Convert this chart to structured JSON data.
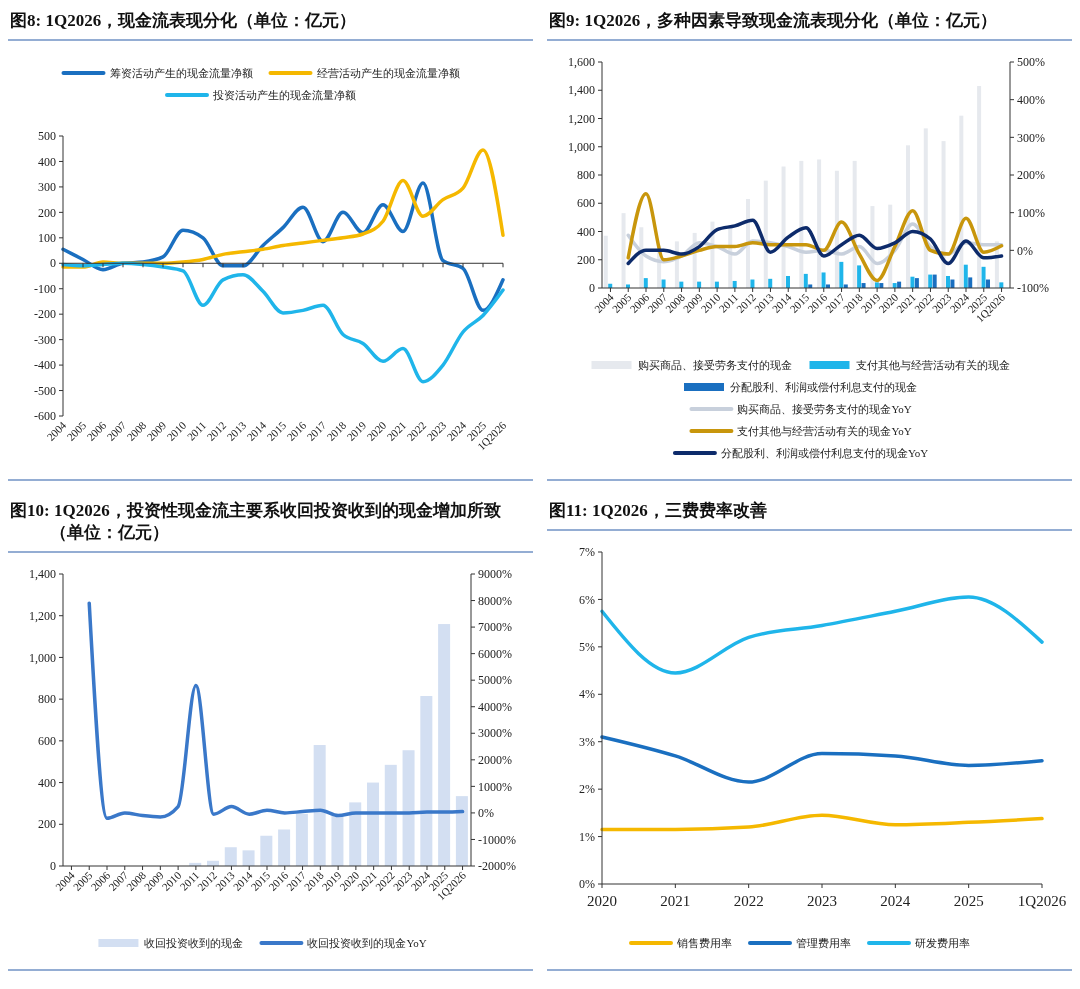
{
  "chart_data": [
    {
      "type": "line",
      "title": "图8: 1Q2026，现金流表现分化（单位：亿元）",
      "legend": "top",
      "categories": [
        "2004",
        "2005",
        "2006",
        "2007",
        "2008",
        "2009",
        "2010",
        "2011",
        "2012",
        "2013",
        "2014",
        "2015",
        "2016",
        "2017",
        "2018",
        "2019",
        "2020",
        "2021",
        "2022",
        "2023",
        "2024",
        "2025",
        "1Q2026"
      ],
      "ylim": [
        -600,
        500
      ],
      "yticks": [
        -600,
        -500,
        -400,
        -300,
        -200,
        -100,
        0,
        100,
        200,
        300,
        400,
        500
      ],
      "series": [
        {
          "name": "筹资活动产生的现金流量净额",
          "color": "#1a6fc0",
          "values": [
            55,
            15,
            -25,
            0,
            5,
            25,
            130,
            100,
            -10,
            -10,
            70,
            140,
            220,
            85,
            200,
            120,
            230,
            125,
            315,
            10,
            -20,
            -185,
            -65
          ]
        },
        {
          "name": "经营活动产生的现金流量净额",
          "color": "#f5b800",
          "values": [
            -15,
            -15,
            5,
            0,
            0,
            0,
            5,
            15,
            35,
            45,
            55,
            70,
            80,
            90,
            100,
            115,
            165,
            325,
            185,
            250,
            295,
            445,
            110
          ]
        },
        {
          "name": "投资活动产生的现金流量净额",
          "color": "#1fb5ea",
          "values": [
            -5,
            -10,
            -5,
            0,
            -5,
            -15,
            -30,
            -165,
            -65,
            -45,
            -110,
            -195,
            -185,
            -165,
            -280,
            -315,
            -385,
            -335,
            -465,
            -400,
            -270,
            -205,
            -105
          ]
        }
      ]
    },
    {
      "type": "bar",
      "title": "图9: 1Q2026，多种因素导致现金流表现分化（单位：亿元）",
      "legend": "bottom",
      "categories": [
        "2004",
        "2005",
        "2006",
        "2007",
        "2008",
        "2009",
        "2010",
        "2011",
        "2012",
        "2013",
        "2014",
        "2015",
        "2016",
        "2017",
        "2018",
        "2019",
        "2020",
        "2021",
        "2022",
        "2023",
        "2024",
        "2025",
        "1Q2026"
      ],
      "ylim": [
        0,
        1600
      ],
      "yticks": [
        0,
        200,
        400,
        600,
        800,
        {
          "value": 1000,
          "label": "1,000"
        },
        {
          "value": 1200,
          "label": "1,200"
        },
        {
          "value": 1400,
          "label": "1,400"
        },
        {
          "value": 1600,
          "label": "1,600"
        }
      ],
      "y2lim": [
        -100,
        500
      ],
      "y2ticks": [
        {
          "value": -100,
          "label": "-100%"
        },
        {
          "value": 0,
          "label": "0%"
        },
        {
          "value": 100,
          "label": "100%"
        },
        {
          "value": 200,
          "label": "200%"
        },
        {
          "value": 300,
          "label": "300%"
        },
        {
          "value": 400,
          "label": "400%"
        },
        {
          "value": 500,
          "label": "500%"
        }
      ],
      "series": [
        {
          "name": "购买商品、接受劳务支付的现金",
          "color": "#e6e9ee",
          "values": [
            370,
            530,
            430,
            300,
            330,
            390,
            470,
            430,
            630,
            760,
            860,
            900,
            910,
            830,
            900,
            580,
            590,
            1010,
            1130,
            1040,
            1220,
            1430,
            330
          ]
        },
        {
          "name": "支付其他与经营活动有关的现金",
          "color": "#1fb5ea",
          "values": [
            30,
            25,
            70,
            60,
            45,
            45,
            45,
            50,
            60,
            65,
            85,
            100,
            110,
            185,
            160,
            40,
            35,
            80,
            95,
            85,
            165,
            150,
            40
          ]
        },
        {
          "name": "分配股利、利润或偿付利息支付的现金",
          "color": "#1a6fc0",
          "values": [
            null,
            null,
            null,
            null,
            null,
            null,
            null,
            null,
            null,
            null,
            null,
            25,
            25,
            25,
            35,
            35,
            45,
            70,
            95,
            60,
            75,
            60,
            null
          ]
        },
        {
          "name": "购买商品、接受劳务支付的现金YoY",
          "type": "line",
          "axis": "y2",
          "color": "#c8d0dc",
          "values": [
            null,
            40,
            -15,
            -30,
            -15,
            20,
            10,
            -10,
            25,
            20,
            10,
            -5,
            0,
            -10,
            10,
            -35,
            0,
            70,
            10,
            -10,
            20,
            15,
            15
          ]
        },
        {
          "name": "支付其他与经营活动有关的现金YoY",
          "type": "line",
          "axis": "y2",
          "color": "#c8960c",
          "values": [
            null,
            -20,
            150,
            -25,
            -15,
            0,
            10,
            10,
            20,
            15,
            15,
            15,
            0,
            75,
            -10,
            -80,
            10,
            105,
            0,
            -10,
            85,
            -5,
            12
          ]
        },
        {
          "name": "分配股利、利润或偿付利息支付的现金YoY",
          "type": "line",
          "axis": "y2",
          "color": "#0d2b6b",
          "values": [
            null,
            -35,
            0,
            0,
            -10,
            10,
            55,
            65,
            80,
            -5,
            35,
            60,
            -15,
            15,
            40,
            5,
            20,
            50,
            30,
            -35,
            25,
            -20,
            -15
          ]
        }
      ]
    },
    {
      "type": "bar",
      "title": "图10: 1Q2026，投资性现金流主要系收回投资收到的现金增加所致（单位：亿元）",
      "legend": "bottom",
      "categories": [
        "2004",
        "2005",
        "2006",
        "2007",
        "2008",
        "2009",
        "2010",
        "2011",
        "2012",
        "2013",
        "2014",
        "2015",
        "2016",
        "2017",
        "2018",
        "2019",
        "2020",
        "2021",
        "2022",
        "2023",
        "2024",
        "2025",
        "1Q2026"
      ],
      "ylim": [
        0,
        1400
      ],
      "yticks": [
        0,
        200,
        400,
        600,
        800,
        {
          "value": 1000,
          "label": "1,000"
        },
        {
          "value": 1200,
          "label": "1,200"
        },
        {
          "value": 1400,
          "label": "1,400"
        }
      ],
      "y2lim": [
        -2000,
        9000
      ],
      "y2ticks": [
        {
          "value": -2000,
          "label": "-2000%"
        },
        {
          "value": -1000,
          "label": "-1000%"
        },
        {
          "value": 0,
          "label": "0%"
        },
        {
          "value": 1000,
          "label": "1000%"
        },
        {
          "value": 2000,
          "label": "2000%"
        },
        {
          "value": 3000,
          "label": "3000%"
        },
        {
          "value": 4000,
          "label": "4000%"
        },
        {
          "value": 5000,
          "label": "5000%"
        },
        {
          "value": 6000,
          "label": "6000%"
        },
        {
          "value": 7000,
          "label": "7000%"
        },
        {
          "value": 8000,
          "label": "8000%"
        },
        {
          "value": 9000,
          "label": "9000%"
        }
      ],
      "series": [
        {
          "name": "收回投资收到的现金",
          "color": "#d3dff2",
          "values": [
            0,
            0,
            0,
            0,
            0,
            0,
            0,
            15,
            25,
            90,
            75,
            145,
            175,
            250,
            580,
            240,
            305,
            400,
            485,
            555,
            815,
            1160,
            335
          ]
        },
        {
          "name": "收回投资收到的现金YoY",
          "type": "line",
          "axis": "y2",
          "color": "#3a78c9",
          "values": [
            null,
            7900,
            -200,
            0,
            -100,
            -150,
            240,
            4800,
            -50,
            240,
            -50,
            100,
            0,
            50,
            100,
            -100,
            0,
            0,
            0,
            0,
            30,
            30,
            50
          ]
        }
      ]
    },
    {
      "type": "line",
      "title": "图11: 1Q2026，三费费率改善",
      "legend": "bottom",
      "categories": [
        "2020",
        "2021",
        "2022",
        "2023",
        "2024",
        "2025",
        "1Q2026"
      ],
      "ylim": [
        0,
        7
      ],
      "yticks": [
        {
          "value": 0,
          "label": "0%"
        },
        {
          "value": 1,
          "label": "1%"
        },
        {
          "value": 2,
          "label": "2%"
        },
        {
          "value": 3,
          "label": "3%"
        },
        {
          "value": 4,
          "label": "4%"
        },
        {
          "value": 5,
          "label": "5%"
        },
        {
          "value": 6,
          "label": "6%"
        },
        {
          "value": 7,
          "label": "7%"
        }
      ],
      "series": [
        {
          "name": "销售费用率",
          "color": "#f5b800",
          "values": [
            1.15,
            1.15,
            1.2,
            1.45,
            1.25,
            1.3,
            1.38
          ]
        },
        {
          "name": "管理费用率",
          "color": "#1a6fc0",
          "values": [
            3.1,
            2.7,
            2.15,
            2.75,
            2.7,
            2.5,
            2.6
          ]
        },
        {
          "name": "研发费用率",
          "color": "#1fb5ea",
          "values": [
            5.75,
            4.45,
            5.2,
            5.45,
            5.75,
            6.05,
            5.1
          ]
        }
      ]
    }
  ]
}
